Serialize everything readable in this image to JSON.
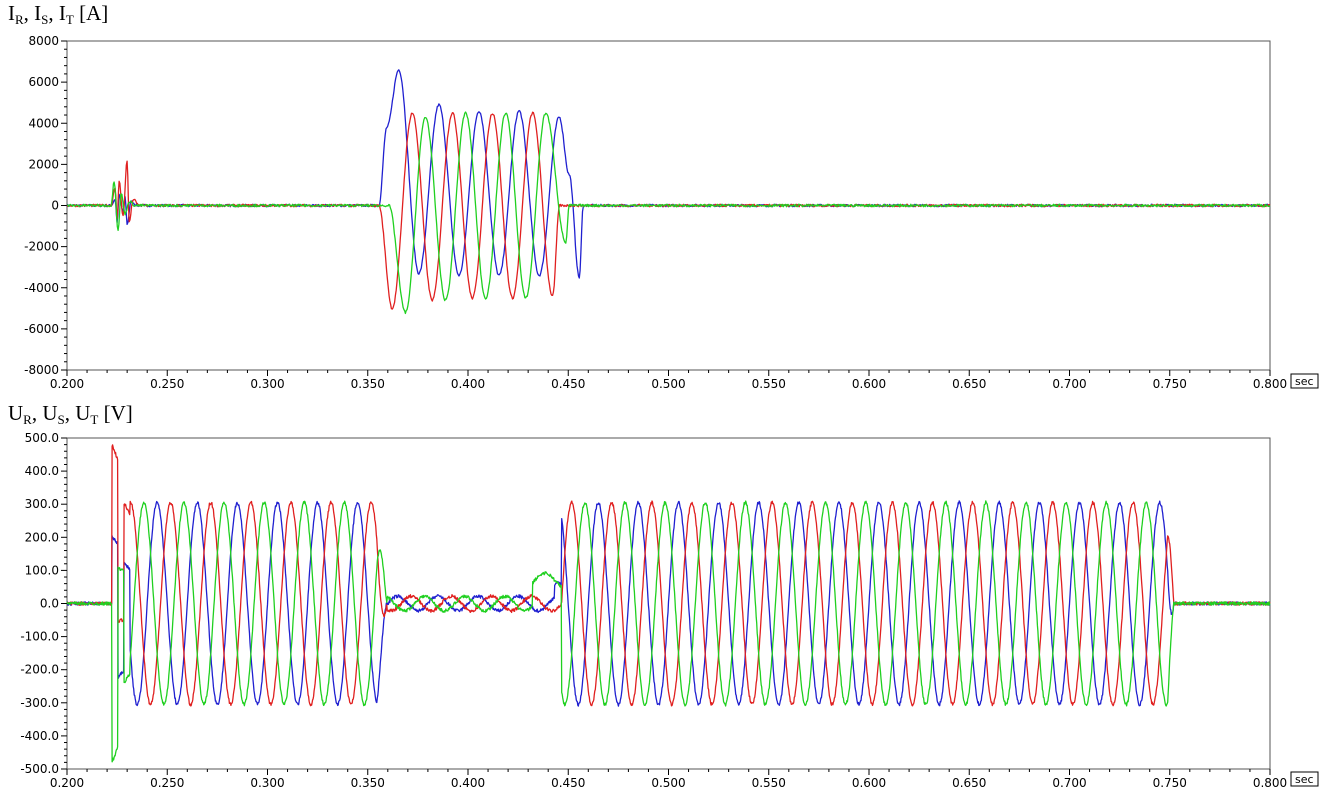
{
  "chart_data": [
    {
      "type": "line",
      "title_parts": [
        "I",
        "R",
        ", I",
        "S",
        ", I",
        "T",
        " [A]"
      ],
      "x_unit": "sec",
      "xlim": [
        0.2,
        0.8
      ],
      "ylim": [
        -8000,
        8000
      ],
      "x_ticks": [
        0.2,
        0.25,
        0.3,
        0.35,
        0.4,
        0.45,
        0.5,
        0.55,
        0.6,
        0.65,
        0.7,
        0.75,
        0.8
      ],
      "x_tick_labels": [
        "0.200",
        "0.250",
        "0.300",
        "0.350",
        "0.400",
        "0.450",
        "0.500",
        "0.550",
        "0.600",
        "0.650",
        "0.700",
        "0.750",
        "0.800"
      ],
      "y_ticks": [
        -8000,
        -6000,
        -4000,
        -2000,
        0,
        2000,
        4000,
        6000,
        8000
      ],
      "y_tick_labels": [
        "-8000",
        "-6000",
        "-4000",
        "-2000",
        "0",
        "2000",
        "4000",
        "6000",
        "8000"
      ],
      "grid": false,
      "series": [
        {
          "color": "#2020d0",
          "x": [
            0.2,
            0.222,
            0.224,
            0.225,
            0.226,
            0.228,
            0.229,
            0.23,
            0.232,
            0.235,
            0.355,
            0.3555,
            0.3595,
            0.3655,
            0.3755,
            0.3855,
            0.3955,
            0.4055,
            0.4155,
            0.4255,
            0.4355,
            0.4455,
            0.4505,
            0.4555,
            0.4575,
            0.8
          ],
          "y": [
            0,
            0,
            300,
            -800,
            500,
            -300,
            400,
            -900,
            200,
            0,
            0,
            0,
            3800,
            6600,
            -3300,
            4900,
            -3400,
            4600,
            -3400,
            4600,
            -3400,
            4300,
            1500,
            -3500,
            0,
            0
          ]
        },
        {
          "color": "#e02020",
          "x": [
            0.2,
            0.222,
            0.224,
            0.225,
            0.226,
            0.228,
            0.23,
            0.231,
            0.233,
            0.236,
            0.355,
            0.3555,
            0.3622,
            0.3722,
            0.3822,
            0.3922,
            0.4022,
            0.4122,
            0.4222,
            0.4322,
            0.4422,
            0.4457,
            0.4475,
            0.8
          ],
          "y": [
            0,
            0,
            900,
            -700,
            1200,
            -500,
            2200,
            -800,
            300,
            0,
            0,
            0,
            -5000,
            4500,
            -4600,
            4500,
            -4500,
            4500,
            -4500,
            4500,
            -4400,
            0,
            0,
            0
          ]
        },
        {
          "color": "#20d020",
          "x": [
            0.2,
            0.222,
            0.2235,
            0.2255,
            0.227,
            0.229,
            0.231,
            0.234,
            0.355,
            0.3605,
            0.3688,
            0.3788,
            0.3888,
            0.3988,
            0.4088,
            0.4188,
            0.4288,
            0.4388,
            0.4488,
            0.4505,
            0.8
          ],
          "y": [
            0,
            0,
            1200,
            -1200,
            600,
            -400,
            200,
            0,
            0,
            0,
            -5200,
            4300,
            -4600,
            4500,
            -4500,
            4500,
            -4500,
            4500,
            -1800,
            0,
            0
          ]
        }
      ]
    },
    {
      "type": "line",
      "title_parts": [
        "U",
        "R",
        ", U",
        "S",
        ", U",
        "T",
        " [V]"
      ],
      "x_unit": "sec",
      "xlim": [
        0.2,
        0.8
      ],
      "ylim": [
        -500,
        500
      ],
      "x_ticks": [
        0.2,
        0.25,
        0.3,
        0.35,
        0.4,
        0.45,
        0.5,
        0.55,
        0.6,
        0.65,
        0.7,
        0.75,
        0.8
      ],
      "x_tick_labels": [
        "0.200",
        "0.250",
        "0.300",
        "0.350",
        "0.400",
        "0.450",
        "0.500",
        "0.550",
        "0.600",
        "0.650",
        "0.700",
        "0.750",
        "0.800"
      ],
      "y_ticks": [
        -500,
        -400,
        -300,
        -200,
        -100,
        0,
        100,
        200,
        300,
        400,
        500
      ],
      "y_tick_labels": [
        "-500.0",
        "-400.0",
        "-300.0",
        "-200.0",
        "-100.0",
        "0.0",
        "100.0",
        "200.0",
        "300.0",
        "400.0",
        "500.0"
      ],
      "grid": false,
      "waveform": {
        "amplitude": 305,
        "frequency_hz": 50,
        "series_phase_deg": [
          0,
          -120,
          120
        ],
        "pre_fault_end": 0.3545,
        "fault_interval": [
          0.3595,
          0.4465
        ],
        "recovery_end": 0.749,
        "residual_amplitude": 22,
        "decay_end": 0.752
      },
      "series": [
        {
          "color": "#2020d0"
        },
        {
          "color": "#e02020"
        },
        {
          "color": "#20d020"
        }
      ]
    }
  ]
}
